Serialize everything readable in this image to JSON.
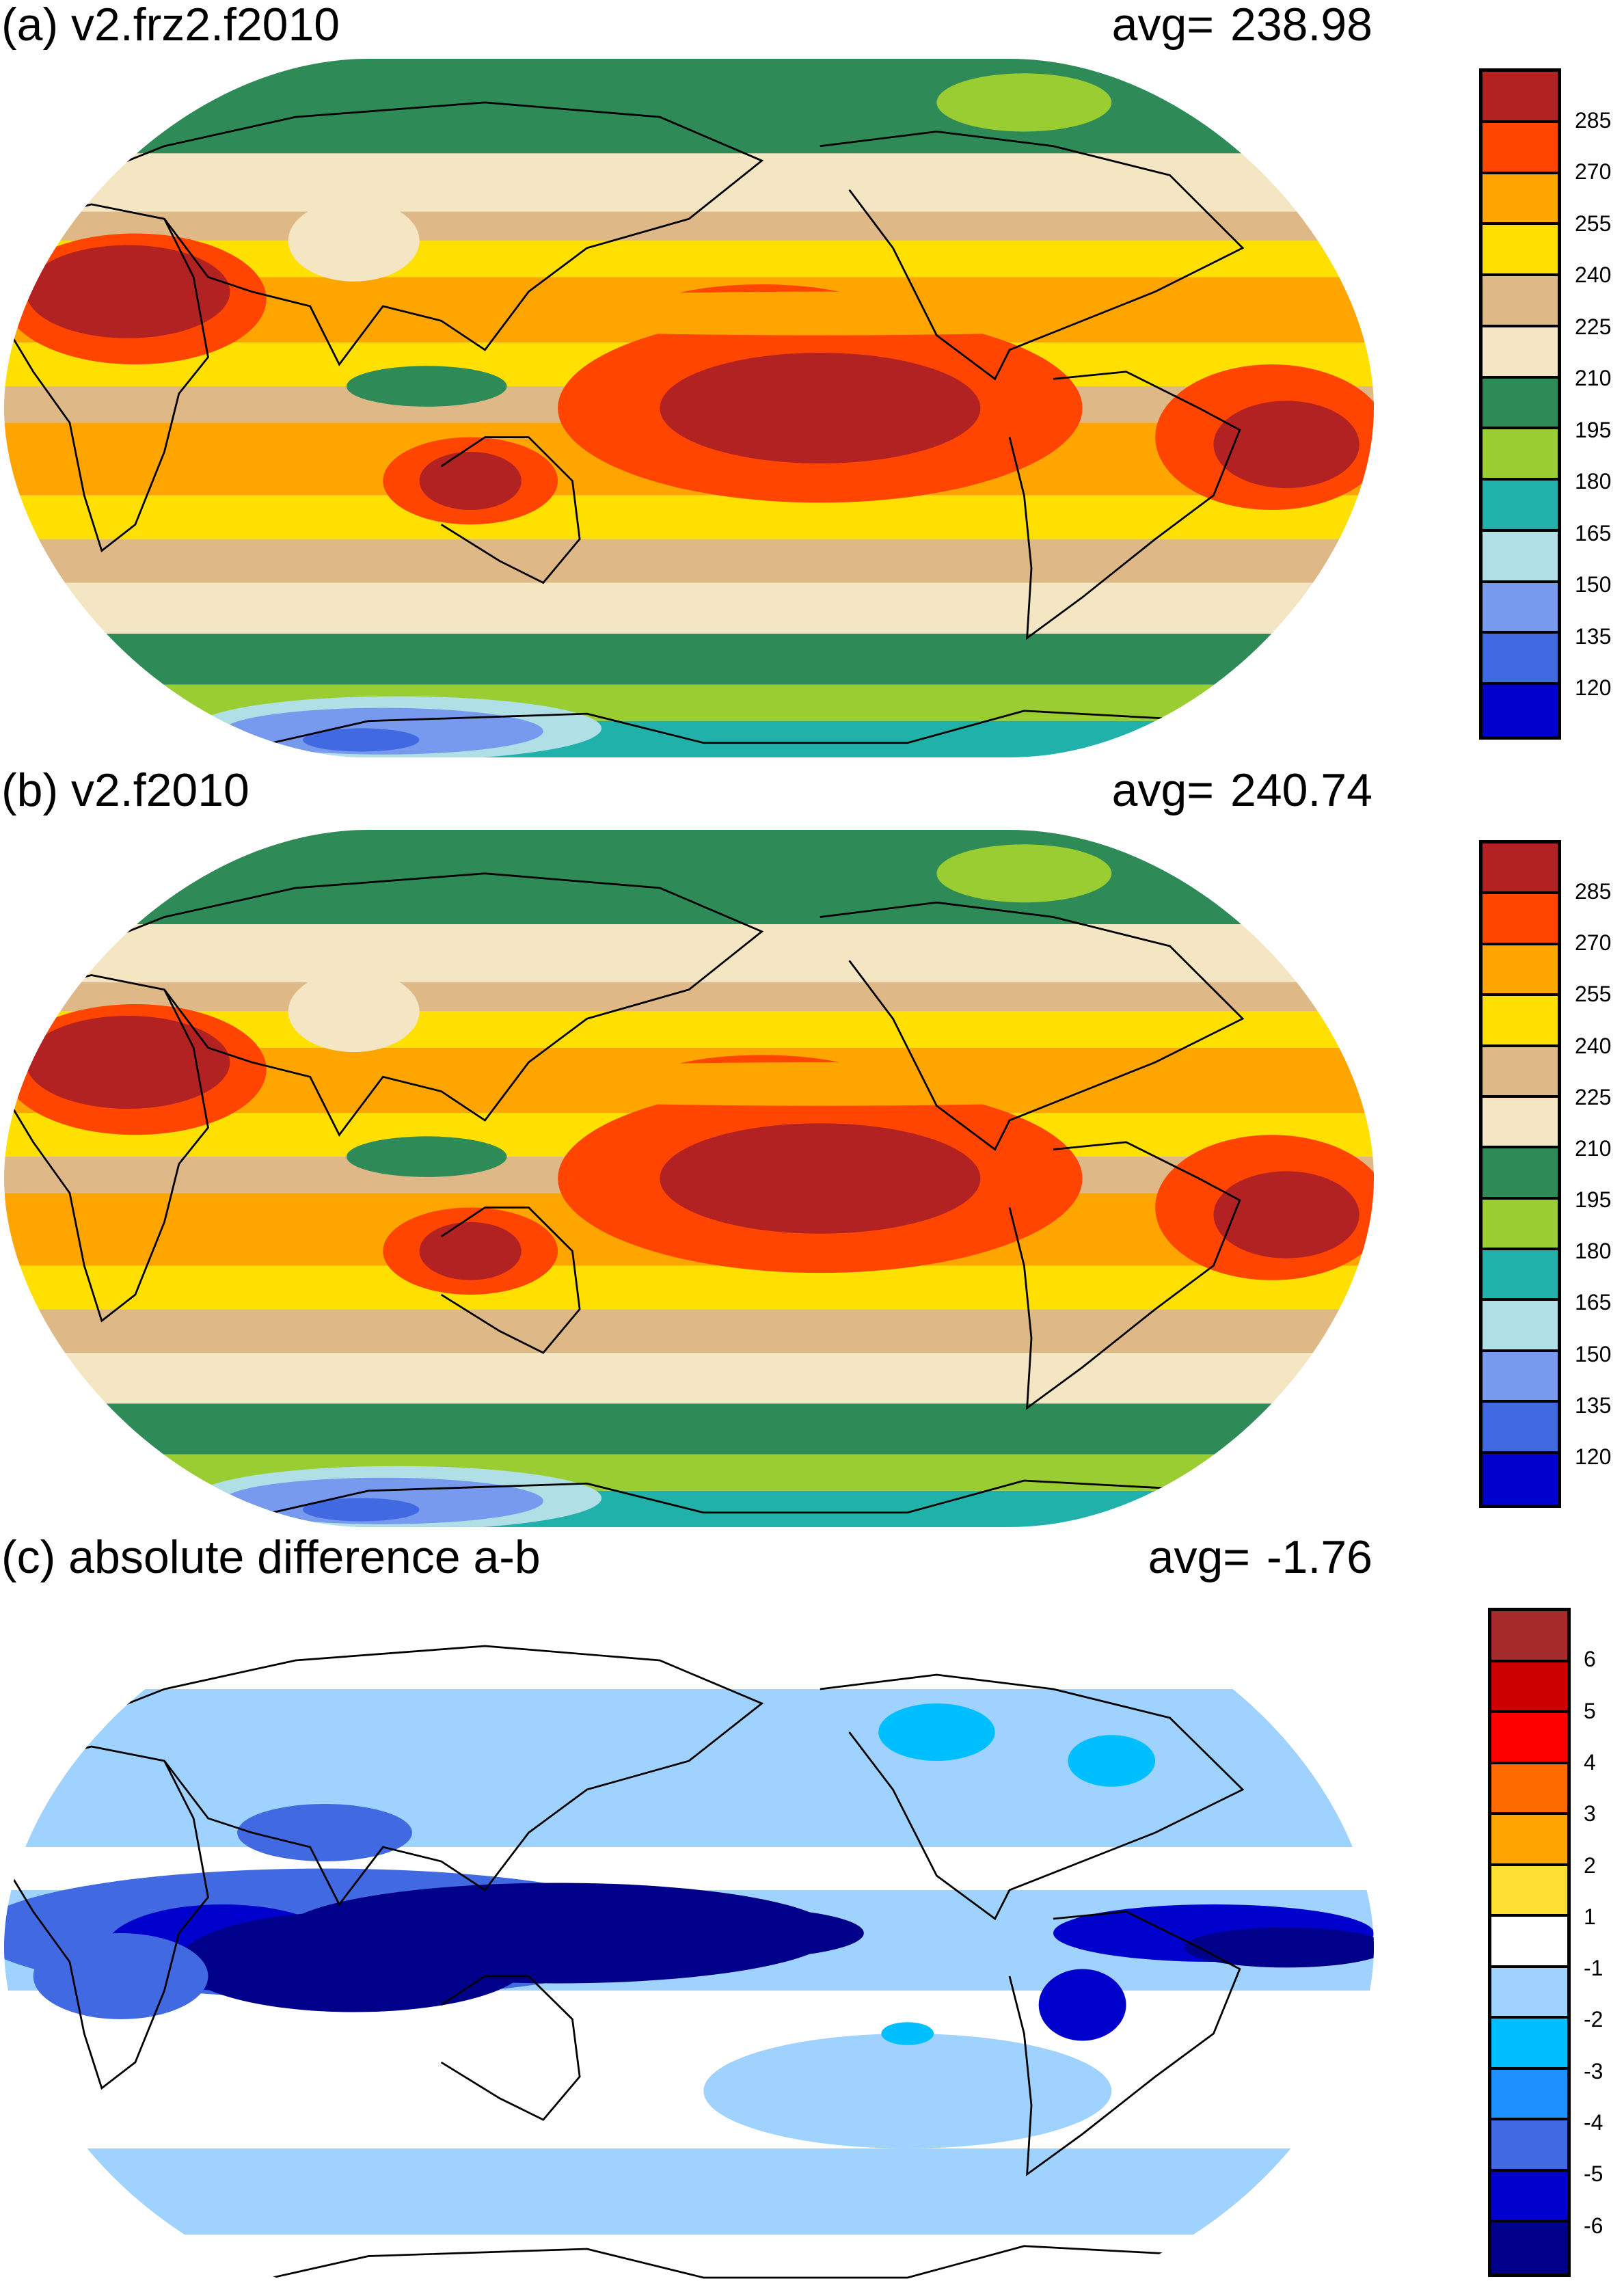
{
  "chart_data": [
    {
      "type": "heatmap",
      "title": "(a) v2.frz2.f2010",
      "avg_label": "avg=",
      "avg_value": "238.98",
      "colorbar": {
        "labels": [
          "285",
          "270",
          "255",
          "240",
          "225",
          "210",
          "195",
          "180",
          "165",
          "150",
          "135",
          "120"
        ],
        "colors": [
          "#B22222",
          "#FF4500",
          "#FFA500",
          "#FFE000",
          "#DEB887",
          "#F5E6C3",
          "#2E8B57",
          "#9ACD32",
          "#20B2AA",
          "#B0E0E6",
          "#7799EE",
          "#4169E1",
          "#0000CD"
        ]
      }
    },
    {
      "type": "heatmap",
      "title": "(b) v2.f2010",
      "avg_label": "avg=",
      "avg_value": "240.74",
      "colorbar": {
        "labels": [
          "285",
          "270",
          "255",
          "240",
          "225",
          "210",
          "195",
          "180",
          "165",
          "150",
          "135",
          "120"
        ],
        "colors": [
          "#B22222",
          "#FF4500",
          "#FFA500",
          "#FFE000",
          "#DEB887",
          "#F5E6C3",
          "#2E8B57",
          "#9ACD32",
          "#20B2AA",
          "#B0E0E6",
          "#7799EE",
          "#4169E1",
          "#0000CD"
        ]
      }
    },
    {
      "type": "heatmap",
      "title": "(c) absolute difference a-b",
      "avg_label": "avg=",
      "avg_value": "-1.76",
      "colorbar": {
        "labels": [
          "6",
          "5",
          "4",
          "3",
          "2",
          "1",
          "-1",
          "-2",
          "-3",
          "-4",
          "-5",
          "-6"
        ],
        "colors": [
          "#A52A2A",
          "#CC0000",
          "#FF0000",
          "#FF6A00",
          "#FFA500",
          "#FFE033",
          "#FFFFFF",
          "#A0D2FF",
          "#00BFFF",
          "#1E90FF",
          "#4169E1",
          "#0000CD",
          "#00008B"
        ]
      }
    }
  ]
}
